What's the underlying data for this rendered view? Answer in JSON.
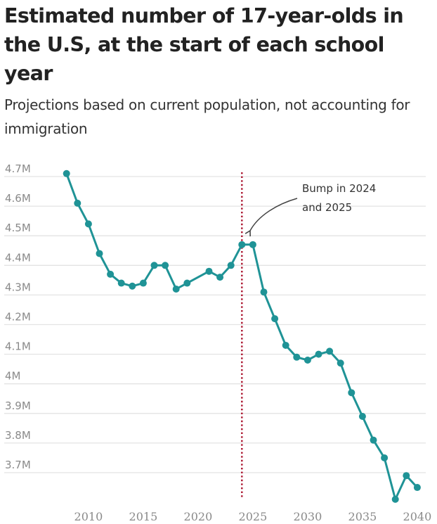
{
  "chart_data": {
    "type": "line",
    "title": "Estimated number of 17-year-olds in the U.S, at the start of each school year",
    "subtitle": "Projections based on current population, not accounting for immigration",
    "xlabel": "",
    "ylabel": "",
    "x_ticks": [
      "2010",
      "2015",
      "2020",
      "2025",
      "2030",
      "2035",
      "2040"
    ],
    "x_tick_values": [
      2010,
      2015,
      2020,
      2025,
      2030,
      2035,
      2040
    ],
    "y_ticks": [
      "4.7M",
      "4.6M",
      "4.5M",
      "4.4M",
      "4.3M",
      "4.2M",
      "4.1M",
      "4M",
      "3.9M",
      "3.8M",
      "3.7M"
    ],
    "y_tick_values": [
      4.7,
      4.6,
      4.5,
      4.4,
      4.3,
      4.2,
      4.1,
      4.0,
      3.9,
      3.8,
      3.7
    ],
    "xlim": [
      2008,
      2040
    ],
    "ylim": [
      3.6,
      4.7
    ],
    "y_unit": "millions",
    "grid": true,
    "series": [
      {
        "name": "17-year-olds",
        "color": "#1f9396",
        "x": [
          2008,
          2009,
          2010,
          2011,
          2012,
          2013,
          2014,
          2015,
          2016,
          2017,
          2018,
          2019,
          2021,
          2022,
          2023,
          2024,
          2025,
          2026,
          2027,
          2028,
          2029,
          2030,
          2031,
          2032,
          2033,
          2034,
          2035,
          2036,
          2037,
          2038,
          2039,
          2040
        ],
        "values": [
          4.71,
          4.61,
          4.54,
          4.44,
          4.37,
          4.34,
          4.33,
          4.34,
          4.4,
          4.4,
          4.32,
          4.34,
          4.38,
          4.36,
          4.4,
          4.47,
          4.47,
          4.31,
          4.22,
          4.13,
          4.09,
          4.08,
          4.1,
          4.11,
          4.07,
          3.97,
          3.89,
          3.81,
          3.75,
          3.61,
          3.69,
          3.65
        ]
      }
    ],
    "reference_line": {
      "x": 2024,
      "color": "#b0243c",
      "style": "dotted"
    },
    "annotation": {
      "lines": [
        "Bump in 2024",
        "and 2025"
      ],
      "points_to": 2024
    }
  }
}
